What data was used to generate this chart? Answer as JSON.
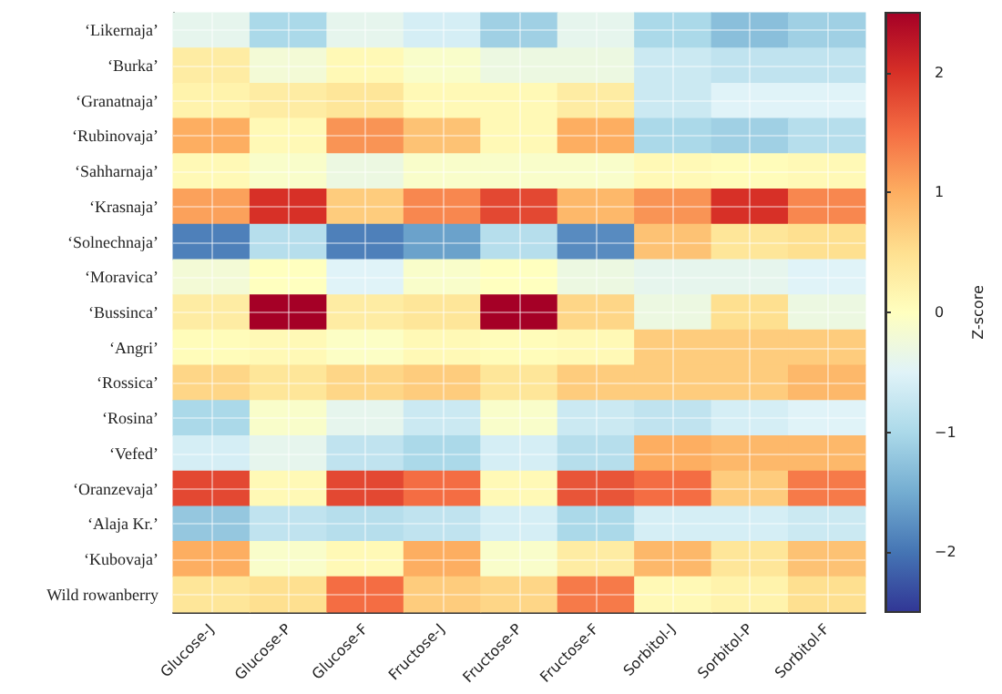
{
  "chart_data": {
    "type": "heatmap",
    "categories": [
      "Glucose-J",
      "Glucose-P",
      "Glucose-F",
      "Fructose-J",
      "Fructose-P",
      "Fructose-F",
      "Sorbitol-J",
      "Sorbitol-P",
      "Sorbitol-F"
    ],
    "y_categories": [
      "‘Likernaja’",
      "‘Burka’",
      "‘Granatnaja’",
      "‘Rubinovaja’",
      "‘Sahharnaja’",
      "‘Krasnaja’",
      "‘Solnechnaja’",
      "‘Moravica’",
      "‘Bussinca’",
      "‘Angri’",
      "‘Rossica’",
      "‘Rosina’",
      "‘Vefed’",
      "‘Oranzevaja’",
      "‘Alaja Kr.’",
      "‘Kubovaja’",
      "Wild rowanberry"
    ],
    "cells": [
      [
        -0.4,
        -1.0,
        -0.4,
        -0.6,
        -1.1,
        -0.4,
        -1.0,
        -1.3,
        -1.1
      ],
      [
        0.3,
        -0.2,
        0.1,
        -0.1,
        -0.3,
        -0.3,
        -0.7,
        -0.8,
        -0.8
      ],
      [
        0.2,
        0.3,
        0.4,
        0.1,
        0.1,
        0.3,
        -0.7,
        -0.5,
        -0.5
      ],
      [
        1.0,
        0.1,
        1.2,
        0.8,
        0.1,
        1.0,
        -1.0,
        -1.1,
        -0.9
      ],
      [
        0.1,
        -0.1,
        -0.3,
        -0.1,
        -0.1,
        -0.1,
        0.1,
        0.05,
        0.1
      ],
      [
        1.1,
        2.0,
        0.7,
        1.3,
        1.8,
        0.9,
        1.2,
        2.0,
        1.3
      ],
      [
        -1.9,
        -0.9,
        -1.9,
        -1.6,
        -0.9,
        -1.8,
        0.8,
        0.4,
        0.5
      ],
      [
        -0.2,
        0.0,
        -0.5,
        -0.1,
        0.0,
        -0.3,
        -0.4,
        -0.4,
        -0.5
      ],
      [
        0.3,
        2.5,
        0.3,
        0.4,
        2.5,
        0.6,
        -0.3,
        0.5,
        -0.3
      ],
      [
        0.05,
        0.1,
        -0.05,
        0.1,
        0.05,
        0.1,
        0.7,
        0.7,
        0.7
      ],
      [
        0.6,
        0.4,
        0.6,
        0.7,
        0.4,
        0.7,
        0.7,
        0.7,
        0.9
      ],
      [
        -1.0,
        -0.1,
        -0.4,
        -0.7,
        -0.1,
        -0.7,
        -0.8,
        -0.6,
        -0.5
      ],
      [
        -0.6,
        -0.4,
        -0.8,
        -1.0,
        -0.6,
        -0.9,
        1.0,
        0.9,
        0.9
      ],
      [
        1.8,
        0.1,
        1.8,
        1.5,
        0.1,
        1.7,
        1.5,
        0.7,
        1.4
      ],
      [
        -1.2,
        -0.8,
        -0.9,
        -0.8,
        -0.6,
        -1.0,
        -0.6,
        -0.6,
        -0.7
      ],
      [
        1.0,
        -0.1,
        0.1,
        1.0,
        -0.1,
        0.3,
        0.9,
        0.4,
        0.8
      ],
      [
        0.4,
        0.5,
        1.5,
        0.7,
        0.6,
        1.4,
        0.1,
        0.2,
        0.5
      ]
    ],
    "clabel": "Z-score",
    "clim": [
      -2.5,
      2.5
    ],
    "cticks": [
      -2,
      -1,
      0,
      1,
      2
    ],
    "grid": true
  }
}
